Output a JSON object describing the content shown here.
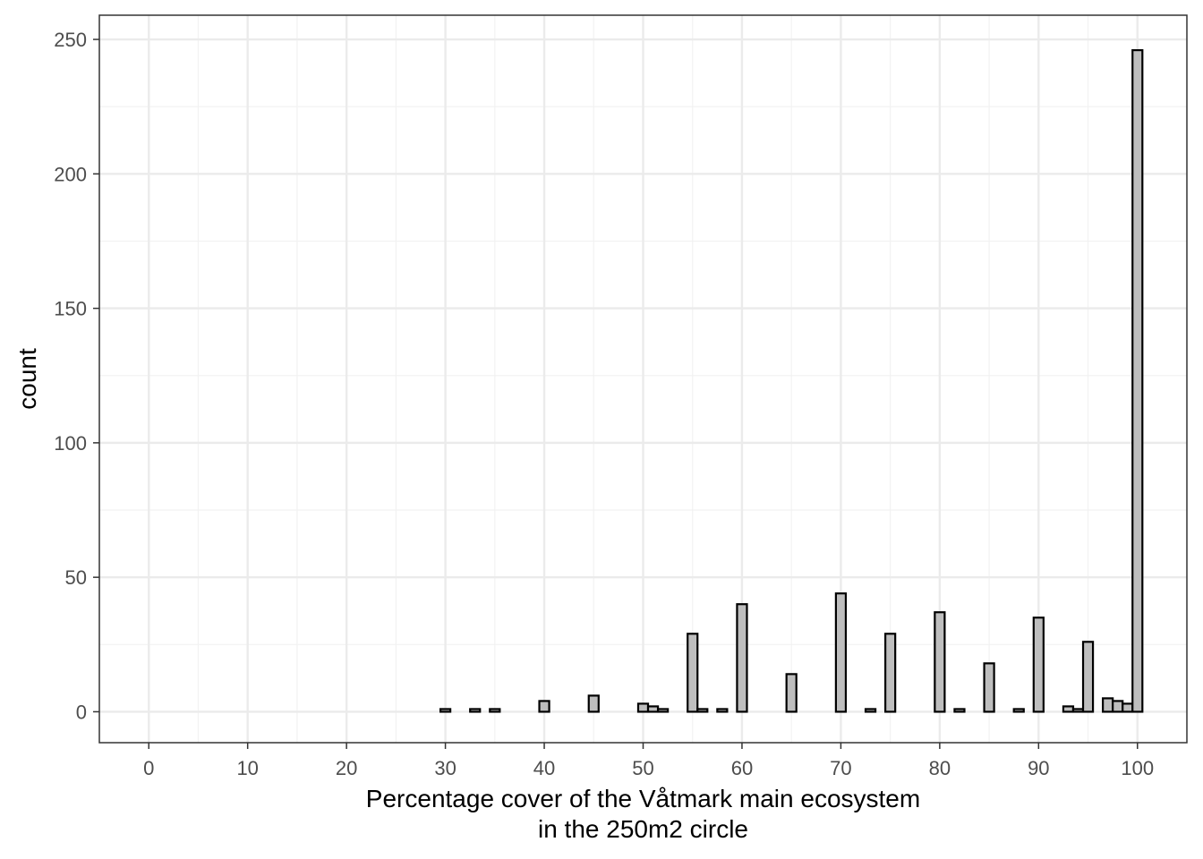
{
  "chart_data": {
    "type": "bar",
    "title": "",
    "xlabel": "Percentage cover of the Våtmark main ecosystem\nin the 250m2 circle",
    "ylabel": "count",
    "xlim": [
      -5,
      105
    ],
    "ylim": [
      -11.5,
      259
    ],
    "x_ticks": [
      0,
      10,
      20,
      30,
      40,
      50,
      60,
      70,
      80,
      90,
      100
    ],
    "y_ticks": [
      0,
      50,
      100,
      150,
      200,
      250
    ],
    "grid": true,
    "bin_width": 1,
    "x": [
      1,
      2,
      3,
      4,
      5,
      6,
      7,
      8,
      9,
      10,
      11,
      12,
      13,
      14,
      15,
      16,
      17,
      18,
      19,
      20,
      21,
      22,
      23,
      24,
      25,
      26,
      27,
      28,
      29,
      30,
      31,
      32,
      33,
      34,
      35,
      36,
      37,
      38,
      39,
      40,
      41,
      42,
      43,
      44,
      45,
      46,
      47,
      48,
      49,
      50,
      51,
      52,
      53,
      54,
      55,
      56,
      57,
      58,
      59,
      60,
      61,
      62,
      63,
      64,
      65,
      66,
      67,
      68,
      69,
      70,
      71,
      72,
      73,
      74,
      75,
      76,
      77,
      78,
      79,
      80,
      81,
      82,
      83,
      84,
      85,
      86,
      87,
      88,
      89,
      90,
      91,
      92,
      93,
      94,
      95,
      96,
      97,
      98,
      99,
      100
    ],
    "values": [
      0,
      0,
      0,
      0,
      0,
      0,
      0,
      0,
      0,
      0,
      0,
      0,
      0,
      0,
      0,
      0,
      0,
      0,
      0,
      0,
      0,
      0,
      0,
      0,
      0,
      0,
      0,
      0,
      0,
      1,
      0,
      0,
      1,
      0,
      1,
      0,
      0,
      0,
      0,
      4,
      0,
      0,
      0,
      0,
      6,
      0,
      0,
      0,
      0,
      3,
      2,
      1,
      0,
      0,
      29,
      1,
      0,
      1,
      0,
      40,
      0,
      0,
      0,
      0,
      14,
      0,
      0,
      0,
      0,
      44,
      0,
      0,
      1,
      0,
      29,
      0,
      0,
      0,
      0,
      37,
      0,
      1,
      0,
      0,
      18,
      0,
      0,
      1,
      0,
      35,
      0,
      0,
      2,
      1,
      26,
      0,
      5,
      4,
      3,
      246
    ],
    "colors": {
      "bar_fill": "#bebebe",
      "bar_stroke": "#000000",
      "grid_major": "#ebebeb",
      "grid_minor": "#f2f2f2",
      "panel_border": "#333333",
      "tick_text": "#4d4d4d"
    }
  }
}
